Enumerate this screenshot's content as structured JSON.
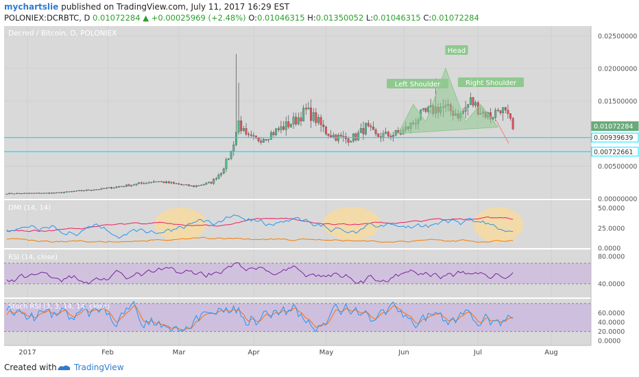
{
  "header": {
    "author": "mychartslie",
    "published": "published on TradingView.com, July 11, 2017 16:29 EST",
    "symbol": "POLONIEX:DCRBTC, D",
    "last": "0.01072284",
    "change": "+0.00025969 (+2.48%)",
    "o_label": "O:",
    "o": "0.01046315",
    "h_label": "H:",
    "h": "0.01350052",
    "l_label": "L:",
    "l": "0.01046315",
    "c_label": "C:",
    "c": "0.01072284"
  },
  "footer": {
    "created_with": "Created with",
    "brand": "TradingView"
  },
  "colors": {
    "panel_bg": "#d9d9d9",
    "up": "#53b987",
    "down": "#eb4d5c",
    "cyan": "#00e5ff",
    "pattern": "#8fc98f",
    "dmi_plus": "#2196f3",
    "dmi_minus": "#e91e63",
    "adx": "#f57c00",
    "rsi": "#7b1fa2",
    "stoch_k": "#2196f3",
    "stoch_d": "#ff6d00",
    "band": "#c9b3e0",
    "highlight": "#f7d9a0"
  },
  "chart_data": [
    {
      "type": "candlestick",
      "title": "Decred / Bitcoin, D, POLONIEX",
      "x_ticks": [
        "2017",
        "Feb",
        "Mar",
        "Apr",
        "May",
        "Jun",
        "Jul",
        "Aug"
      ],
      "ylim": [
        0,
        0.0265
      ],
      "y_ticks": [
        "0.02500000",
        "0.02000000",
        "0.01500000",
        "0.00500000",
        "0.00000000"
      ],
      "price_labels": [
        {
          "value": 0.01072284,
          "text": "0.01072284",
          "style": "last"
        },
        {
          "value": 0.00939639,
          "text": "0.00939639",
          "style": "line"
        },
        {
          "value": 0.00722661,
          "text": "0.00722661",
          "style": "line"
        }
      ],
      "horizontal_lines": [
        0.00939639,
        0.00722661
      ],
      "pattern_labels": {
        "left_shoulder": "Left Shoulder",
        "head": "Head",
        "right_shoulder": "Right Shoulder"
      },
      "key_closes": [
        [
          0,
          0.0008
        ],
        [
          20,
          0.0009
        ],
        [
          40,
          0.0016
        ],
        [
          60,
          0.0027
        ],
        [
          75,
          0.0019
        ],
        [
          82,
          0.0025
        ],
        [
          86,
          0.0041
        ],
        [
          90,
          0.0072
        ],
        [
          93,
          0.0118
        ],
        [
          96,
          0.0094
        ],
        [
          100,
          0.009
        ],
        [
          104,
          0.0096
        ],
        [
          110,
          0.0108
        ],
        [
          116,
          0.0121
        ],
        [
          120,
          0.0135
        ],
        [
          124,
          0.0122
        ],
        [
          128,
          0.0103
        ],
        [
          132,
          0.0095
        ],
        [
          136,
          0.0092
        ],
        [
          140,
          0.0095
        ],
        [
          144,
          0.011
        ],
        [
          148,
          0.0096
        ],
        [
          154,
          0.0098
        ],
        [
          158,
          0.0101
        ],
        [
          162,
          0.0113
        ],
        [
          166,
          0.0128
        ],
        [
          170,
          0.0135
        ],
        [
          174,
          0.0141
        ],
        [
          178,
          0.0135
        ],
        [
          182,
          0.0128
        ],
        [
          186,
          0.015
        ],
        [
          190,
          0.0135
        ],
        [
          194,
          0.0126
        ],
        [
          198,
          0.014
        ],
        [
          200,
          0.013
        ],
        [
          203,
          0.011
        ]
      ]
    },
    {
      "type": "line",
      "title": "DMI (14, 14)",
      "ylim": [
        0,
        60
      ],
      "y_ticks": [
        "50.0000",
        "25.0000",
        "0.0000"
      ],
      "series": []
    },
    {
      "type": "line",
      "title": "RSI (14, close)",
      "ylim": [
        20,
        90
      ],
      "y_ticks": [
        "80.0000",
        "40.0000"
      ],
      "band": [
        40,
        70
      ],
      "series": []
    },
    {
      "type": "line",
      "title": "Stoch RSI (3, 3, 14, 14, close)",
      "ylim": [
        -10,
        90
      ],
      "y_ticks": [
        "60.0000",
        "40.0000",
        "20.0000",
        "0.0000"
      ],
      "band": [
        20,
        80
      ],
      "series": []
    }
  ]
}
